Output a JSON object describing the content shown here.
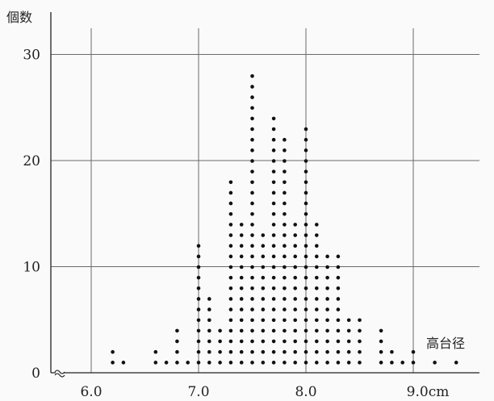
{
  "chart_data": {
    "type": "scatter",
    "style": "dot-plot",
    "ylabel": "個数",
    "xlabel": "高台径",
    "x_tick_labels": [
      "6.0",
      "7.0",
      "8.0",
      "9.0cm"
    ],
    "x_ticks": [
      6.0,
      7.0,
      8.0,
      9.0
    ],
    "y_ticks": [
      0,
      10,
      20,
      30
    ],
    "y_tick_labels": [
      "0",
      "10",
      "20",
      "30"
    ],
    "xlim": [
      5.6,
      9.6
    ],
    "ylim": [
      0,
      33
    ],
    "axis_break": true,
    "grid": true,
    "x": [
      6.2,
      6.3,
      6.6,
      6.7,
      6.8,
      6.9,
      7.0,
      7.1,
      7.2,
      7.3,
      7.4,
      7.5,
      7.6,
      7.7,
      7.8,
      7.9,
      8.0,
      8.1,
      8.2,
      8.3,
      8.4,
      8.5,
      8.6,
      8.7,
      8.8,
      8.9,
      9.0,
      9.2,
      9.4
    ],
    "counts": [
      2,
      1,
      2,
      1,
      4,
      1,
      12,
      7,
      4,
      18,
      14,
      28,
      13,
      24,
      22,
      14,
      23,
      14,
      11,
      11,
      5,
      5,
      0,
      4,
      2,
      1,
      2,
      1,
      1
    ]
  },
  "colors": {
    "dot": "#111111",
    "grid": "#6a6a6a",
    "axis": "#222222",
    "background": "#fafafa"
  }
}
